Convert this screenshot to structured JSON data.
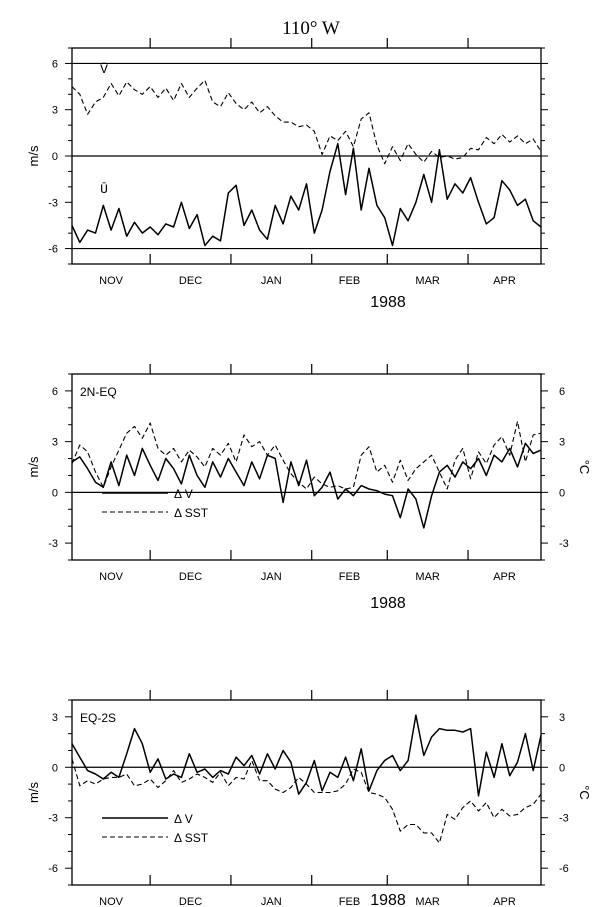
{
  "figure": {
    "title": "110° W"
  },
  "chart_data": [
    {
      "type": "line",
      "panel_label": "",
      "ylabel": "m/s",
      "y2label": "",
      "xlabel": "1988",
      "month_labels": [
        "NOV",
        "DEC",
        "JAN",
        "FEB",
        "MAR",
        "APR"
      ],
      "ylim": [
        -7,
        7
      ],
      "yticks": [
        -6,
        -3,
        0,
        3,
        6
      ],
      "y2ticks": [],
      "reference_lines": [
        0,
        6,
        -6
      ],
      "annotations": [
        "V̄",
        "Ū"
      ],
      "series": [
        {
          "name": "V̄",
          "style": "dashed",
          "x": [
            0,
            3,
            6,
            9,
            12,
            15,
            18,
            21,
            24,
            27,
            30,
            33,
            36,
            39,
            42,
            45,
            48,
            51,
            54,
            57,
            60,
            63,
            66,
            69,
            72,
            75,
            78,
            81,
            84,
            87,
            90,
            93,
            96,
            99,
            102,
            105,
            108,
            111,
            114,
            117,
            120,
            123,
            126,
            129,
            132,
            135,
            138,
            141,
            144,
            147,
            150,
            153,
            156,
            159,
            162,
            165,
            168,
            171,
            174,
            177,
            180
          ],
          "values": [
            4.5,
            4.0,
            2.7,
            3.5,
            3.8,
            4.7,
            3.9,
            4.8,
            4.3,
            4.0,
            4.5,
            3.8,
            4.4,
            3.6,
            4.7,
            3.8,
            4.4,
            4.9,
            3.5,
            3.2,
            4.1,
            3.4,
            3.0,
            3.5,
            2.8,
            3.2,
            2.6,
            2.2,
            2.2,
            1.9,
            2.0,
            1.6,
            0.1,
            1.3,
            1.0,
            1.6,
            0.6,
            2.4,
            2.8,
            0.7,
            -0.5,
            0.6,
            -0.3,
            0.8,
            0.1,
            -0.4,
            0.3,
            -0.1,
            0.0,
            -0.2,
            -0.1,
            0.5,
            0.4,
            1.2,
            0.8,
            1.4,
            0.9,
            1.3,
            0.8,
            1.1,
            0.3
          ]
        },
        {
          "name": "Ū",
          "style": "solid",
          "x": [
            0,
            3,
            6,
            9,
            12,
            15,
            18,
            21,
            24,
            27,
            30,
            33,
            36,
            39,
            42,
            45,
            48,
            51,
            54,
            57,
            60,
            63,
            66,
            69,
            72,
            75,
            78,
            81,
            84,
            87,
            90,
            93,
            96,
            99,
            102,
            105,
            108,
            111,
            114,
            117,
            120,
            123,
            126,
            129,
            132,
            135,
            138,
            141,
            144,
            147,
            150,
            153,
            156,
            159,
            162,
            165,
            168,
            171,
            174,
            177,
            180
          ],
          "values": [
            -4.5,
            -5.6,
            -4.8,
            -5.0,
            -3.2,
            -4.8,
            -3.4,
            -5.2,
            -4.3,
            -5.0,
            -4.6,
            -5.1,
            -4.4,
            -4.6,
            -3.0,
            -4.7,
            -3.8,
            -5.8,
            -5.2,
            -5.5,
            -2.4,
            -1.9,
            -4.5,
            -3.5,
            -4.8,
            -5.4,
            -3.2,
            -4.4,
            -2.6,
            -3.5,
            -1.8,
            -5.0,
            -3.5,
            -1.0,
            0.8,
            -2.5,
            0.5,
            -3.5,
            -0.8,
            -3.2,
            -4.0,
            -5.8,
            -3.4,
            -4.2,
            -3.0,
            -1.2,
            -3.0,
            0.4,
            -2.8,
            -1.8,
            -2.4,
            -1.4,
            -3.0,
            -4.4,
            -4.0,
            -1.6,
            -2.2,
            -3.2,
            -2.8,
            -4.2,
            -4.6
          ]
        }
      ]
    },
    {
      "type": "line",
      "panel_label": "2N-EQ",
      "ylabel": "m/s",
      "y2label": "°C",
      "xlabel": "1988",
      "month_labels": [
        "NOV",
        "DEC",
        "JAN",
        "FEB",
        "MAR",
        "APR"
      ],
      "ylim": [
        -4,
        7
      ],
      "yticks": [
        -3,
        0,
        3,
        6
      ],
      "y2ticks": [
        -3,
        0,
        3,
        6
      ],
      "reference_lines": [
        0
      ],
      "legend": {
        "placement": "bottom-left",
        "entries": [
          "Δ V",
          "Δ SST"
        ]
      },
      "series": [
        {
          "name": "Δ V",
          "style": "solid",
          "x": [
            0,
            3,
            6,
            9,
            12,
            15,
            18,
            21,
            24,
            27,
            30,
            33,
            36,
            39,
            42,
            45,
            48,
            51,
            54,
            57,
            60,
            63,
            66,
            69,
            72,
            75,
            78,
            81,
            84,
            87,
            90,
            93,
            96,
            99,
            102,
            105,
            108,
            111,
            114,
            117,
            120,
            123,
            126,
            129,
            132,
            135,
            138,
            141,
            144,
            147,
            150,
            153,
            156,
            159,
            162,
            165,
            168,
            171,
            174,
            177,
            180
          ],
          "values": [
            1.8,
            2.1,
            1.4,
            0.6,
            0.3,
            1.8,
            0.4,
            2.2,
            1.0,
            2.6,
            1.6,
            0.7,
            2.0,
            1.4,
            0.5,
            2.2,
            1.0,
            0.3,
            1.8,
            0.9,
            2.0,
            1.2,
            0.4,
            1.8,
            0.8,
            2.2,
            2.0,
            -0.6,
            1.8,
            0.4,
            1.9,
            -0.2,
            0.3,
            1.2,
            -0.4,
            0.2,
            -0.2,
            0.4,
            0.2,
            0.1,
            -0.1,
            -0.2,
            -1.5,
            0.2,
            -0.4,
            -2.1,
            -0.2,
            1.2,
            1.6,
            0.9,
            1.8,
            1.4,
            2.0,
            1.0,
            2.2,
            1.8,
            2.6,
            1.5,
            2.9,
            2.3,
            2.5
          ]
        },
        {
          "name": "Δ SST",
          "style": "dashed",
          "x": [
            0,
            3,
            6,
            9,
            12,
            15,
            18,
            21,
            24,
            27,
            30,
            33,
            36,
            39,
            42,
            45,
            48,
            51,
            54,
            57,
            60,
            63,
            66,
            69,
            72,
            75,
            78,
            81,
            84,
            87,
            90,
            93,
            96,
            99,
            102,
            105,
            108,
            111,
            114,
            117,
            120,
            123,
            126,
            129,
            132,
            135,
            138,
            141,
            144,
            147,
            150,
            153,
            156,
            159,
            162,
            165,
            168,
            171,
            174,
            177,
            180
          ],
          "values": [
            1.7,
            2.8,
            2.4,
            1.2,
            0.3,
            1.5,
            2.5,
            3.5,
            3.9,
            3.2,
            4.1,
            2.6,
            2.2,
            2.6,
            1.8,
            2.5,
            2.1,
            1.5,
            2.6,
            2.2,
            2.9,
            1.8,
            3.4,
            2.7,
            3.0,
            2.2,
            2.8,
            1.9,
            1.1,
            0.6,
            0.2,
            0.9,
            0.5,
            0.3,
            0.4,
            0.2,
            0.3,
            2.2,
            2.7,
            1.2,
            1.6,
            0.6,
            1.9,
            0.7,
            1.4,
            1.8,
            2.2,
            1.2,
            0.2,
            1.9,
            2.6,
            0.8,
            2.4,
            1.7,
            2.8,
            3.3,
            2.2,
            4.2,
            1.8,
            3.4,
            3.5
          ]
        }
      ]
    },
    {
      "type": "line",
      "panel_label": "EQ-2S",
      "ylabel": "m/s",
      "y2label": "°C",
      "xlabel": "1988",
      "month_labels": [
        "NOV",
        "DEC",
        "JAN",
        "FEB",
        "MAR",
        "APR"
      ],
      "ylim": [
        -7,
        4
      ],
      "yticks": [
        -6,
        -3,
        0,
        3
      ],
      "y2ticks": [
        -6,
        -3,
        0,
        3
      ],
      "reference_lines": [
        0
      ],
      "legend": {
        "placement": "bottom-left",
        "entries": [
          "Δ V",
          "Δ SST"
        ]
      },
      "series": [
        {
          "name": "Δ V",
          "style": "solid",
          "x": [
            0,
            3,
            6,
            9,
            12,
            15,
            18,
            21,
            24,
            27,
            30,
            33,
            36,
            39,
            42,
            45,
            48,
            51,
            54,
            57,
            60,
            63,
            66,
            69,
            72,
            75,
            78,
            81,
            84,
            87,
            90,
            93,
            96,
            99,
            102,
            105,
            108,
            111,
            114,
            117,
            120,
            123,
            126,
            129,
            132,
            135,
            138,
            141,
            144,
            147,
            150,
            153,
            156,
            159,
            162,
            165,
            168,
            171,
            174,
            177,
            180
          ],
          "values": [
            1.4,
            0.6,
            -0.2,
            -0.4,
            -0.7,
            -0.3,
            -0.6,
            0.8,
            2.3,
            1.4,
            -0.3,
            0.5,
            -0.7,
            -0.4,
            -0.6,
            0.8,
            -0.3,
            -0.1,
            -0.6,
            -0.2,
            -0.4,
            0.6,
            0.1,
            0.7,
            -0.4,
            0.8,
            -0.1,
            1.0,
            0.3,
            -1.6,
            -0.9,
            0.4,
            -1.4,
            -0.3,
            -0.6,
            0.6,
            -0.8,
            1.1,
            -1.4,
            -0.2,
            0.4,
            0.7,
            -0.2,
            0.4,
            3.1,
            0.7,
            1.8,
            2.3,
            2.2,
            2.2,
            2.1,
            2.3,
            -1.7,
            0.9,
            -0.6,
            1.4,
            -0.5,
            0.3,
            2.0,
            -0.2,
            1.9
          ]
        },
        {
          "name": "Δ SST",
          "style": "dashed",
          "x": [
            0,
            3,
            6,
            9,
            12,
            15,
            18,
            21,
            24,
            27,
            30,
            33,
            36,
            39,
            42,
            45,
            48,
            51,
            54,
            57,
            60,
            63,
            66,
            69,
            72,
            75,
            78,
            81,
            84,
            87,
            90,
            93,
            96,
            99,
            102,
            105,
            108,
            111,
            114,
            117,
            120,
            123,
            126,
            129,
            132,
            135,
            138,
            141,
            144,
            147,
            150,
            153,
            156,
            159,
            162,
            165,
            168,
            171,
            174,
            177,
            180
          ],
          "values": [
            0.5,
            -1.1,
            -0.8,
            -1.0,
            -0.7,
            -0.6,
            -0.6,
            -0.4,
            -1.1,
            -1.0,
            -0.7,
            -1.2,
            -0.8,
            -0.2,
            -0.9,
            -0.7,
            -0.4,
            -0.6,
            -0.9,
            -0.3,
            -1.1,
            -0.6,
            -0.7,
            0.4,
            -0.8,
            -0.8,
            -1.3,
            -1.5,
            -1.2,
            -0.6,
            -1.0,
            -1.5,
            -1.5,
            -1.5,
            -1.4,
            -1.0,
            -0.1,
            -0.3,
            -1.5,
            -1.6,
            -1.8,
            -2.5,
            -3.8,
            -3.4,
            -3.4,
            -3.9,
            -3.9,
            -4.5,
            -2.8,
            -3.1,
            -2.4,
            -2.0,
            -2.6,
            -2.1,
            -3.0,
            -2.5,
            -2.9,
            -2.8,
            -2.4,
            -2.2,
            -1.6
          ]
        }
      ]
    }
  ]
}
